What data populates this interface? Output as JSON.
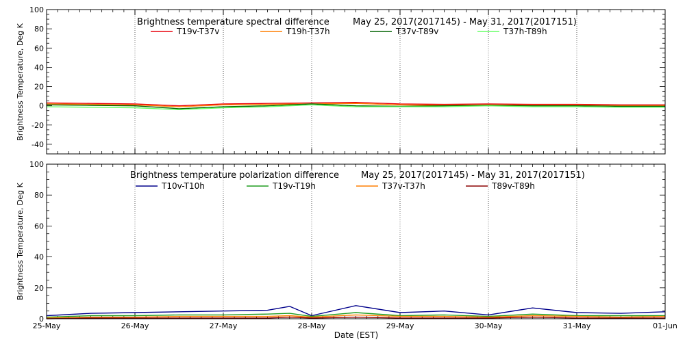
{
  "figure": {
    "xlabel": "Date (EST)",
    "x_ticks": [
      "25-May",
      "26-May",
      "27-May",
      "28-May",
      "29-May",
      "30-May",
      "31-May",
      "01-Jun"
    ]
  },
  "chart_data": [
    {
      "type": "line",
      "title": "Brightness temperature spectral difference",
      "date_range": "May 25, 2017(2017145) - May 31, 2017(2017151)",
      "ylabel": "Brightness Temperature, Deg K",
      "xlim": [
        "2017-05-25",
        "2017-06-01"
      ],
      "ylim": [
        -50,
        100
      ],
      "yticks": [
        -40,
        -20,
        0,
        20,
        40,
        60,
        80,
        100
      ],
      "grid_x": true,
      "legend": "top, single row",
      "x": [
        "2017-05-25",
        "2017-05-25 12:00",
        "2017-05-26",
        "2017-05-26 12:00",
        "2017-05-27",
        "2017-05-27 12:00",
        "2017-05-28",
        "2017-05-28 12:00",
        "2017-05-29",
        "2017-05-29 12:00",
        "2017-05-30",
        "2017-05-30 12:00",
        "2017-05-31",
        "2017-05-31 12:00",
        "2017-06-01"
      ],
      "series": [
        {
          "name": "T19v-T37v",
          "color": "#e8000b",
          "values": [
            3,
            2.5,
            2,
            0,
            2,
            2.5,
            3,
            3.5,
            2,
            1.5,
            2,
            1.5,
            1.5,
            1,
            1
          ]
        },
        {
          "name": "T19h-T37h",
          "color": "#ff7f00",
          "values": [
            2,
            1.5,
            1,
            -1,
            1,
            1.5,
            2,
            2.5,
            1,
            0.5,
            1,
            0.5,
            0.5,
            0,
            0
          ]
        },
        {
          "name": "T37v-T89v",
          "color": "#006400",
          "values": [
            1,
            0.5,
            0,
            -3,
            -1,
            0,
            2,
            0,
            -0.5,
            0,
            0.5,
            0,
            0,
            -0.5,
            -0.5
          ]
        },
        {
          "name": "T37h-T89h",
          "color": "#66ff66",
          "values": [
            -1,
            -1.5,
            -2,
            -4,
            -2,
            -1,
            1,
            -1,
            -1,
            -1,
            0,
            -1,
            -1,
            -1.5,
            -1.5
          ]
        }
      ]
    },
    {
      "type": "line",
      "title": "Brightness temperature polarization difference",
      "date_range": "May 25, 2017(2017145) - May 31, 2017(2017151)",
      "ylabel": "Brightness Temperature, Deg K",
      "xlim": [
        "2017-05-25",
        "2017-06-01"
      ],
      "ylim": [
        0,
        100
      ],
      "yticks": [
        0,
        20,
        40,
        60,
        80,
        100
      ],
      "grid_x": true,
      "legend": "top, single row",
      "x": [
        "2017-05-25",
        "2017-05-25 12:00",
        "2017-05-26",
        "2017-05-26 12:00",
        "2017-05-27",
        "2017-05-27 12:00",
        "2017-05-27 18:00",
        "2017-05-28",
        "2017-05-28 12:00",
        "2017-05-29",
        "2017-05-29 12:00",
        "2017-05-30",
        "2017-05-30 12:00",
        "2017-05-31",
        "2017-05-31 12:00",
        "2017-06-01"
      ],
      "series": [
        {
          "name": "T10v-T10h",
          "color": "#00008b",
          "values": [
            2,
            3.5,
            4,
            4.5,
            5,
            5.5,
            8,
            2,
            8.5,
            4,
            5,
            2.5,
            7,
            4,
            3.5,
            4.5
          ]
        },
        {
          "name": "T19v-T19h",
          "color": "#1e9b1e",
          "values": [
            1,
            2,
            2,
            2.5,
            2.5,
            3,
            3.5,
            1.5,
            4,
            2,
            2.5,
            1.5,
            3,
            2,
            2,
            2
          ]
        },
        {
          "name": "T37v-T37h",
          "color": "#ff7f00",
          "values": [
            0.5,
            1,
            1,
            1.5,
            1.5,
            1.5,
            2,
            1,
            2.5,
            1.5,
            1.5,
            1,
            2,
            1.5,
            1,
            1.5
          ]
        },
        {
          "name": "T89v-T89h",
          "color": "#8b0000",
          "values": [
            0,
            0.5,
            0.5,
            0.5,
            0.5,
            0.5,
            1,
            0.5,
            1,
            0.5,
            0.5,
            0.5,
            1,
            0.5,
            0.5,
            0.5
          ]
        }
      ]
    }
  ]
}
